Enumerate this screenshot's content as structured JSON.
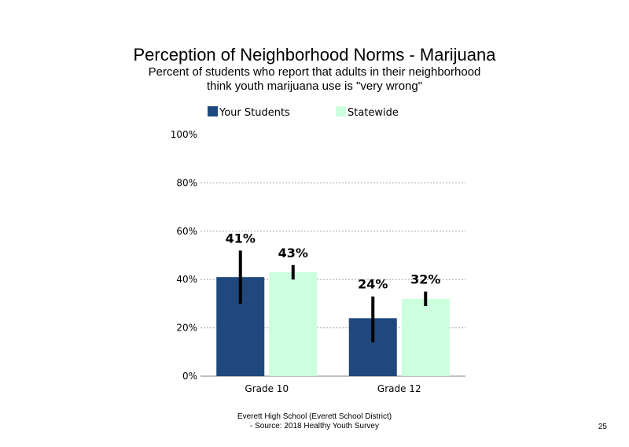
{
  "slide": {
    "title": "Perception of Neighborhood Norms - Marijuana",
    "subtitle_line1": "Percent of students who report that adults in their neighborhood",
    "subtitle_line2": "think youth marijuana use is \"very wrong\"",
    "footer_line1": "Everett High School (Everett School District)",
    "footer_line2": "- Source: 2018 Healthy Youth Survey",
    "page_number": "25"
  },
  "colors": {
    "your_students": "#1f497d",
    "statewide": "#ccffdd",
    "error_bar": "#000000",
    "grid": "#a6a6a6",
    "axis": "#808080"
  },
  "chart_data": {
    "type": "bar",
    "categories": [
      "Grade 10",
      "Grade 12"
    ],
    "series": [
      {
        "name": "Your Students",
        "values": [
          41,
          24
        ],
        "data_labels": [
          "41%",
          "24%"
        ],
        "error_low": [
          30,
          14
        ],
        "error_high": [
          52,
          33
        ]
      },
      {
        "name": "Statewide",
        "values": [
          43,
          32
        ],
        "data_labels": [
          "43%",
          "32%"
        ],
        "error_low": [
          40,
          29
        ],
        "error_high": [
          46,
          35
        ]
      }
    ],
    "ylim": [
      0,
      100
    ],
    "yticks": [
      0,
      20,
      40,
      60,
      80,
      100
    ],
    "ytick_labels": [
      "0%",
      "20%",
      "40%",
      "60%",
      "80%",
      "100%"
    ],
    "grid": "dashed horizontal",
    "legend": "top"
  }
}
